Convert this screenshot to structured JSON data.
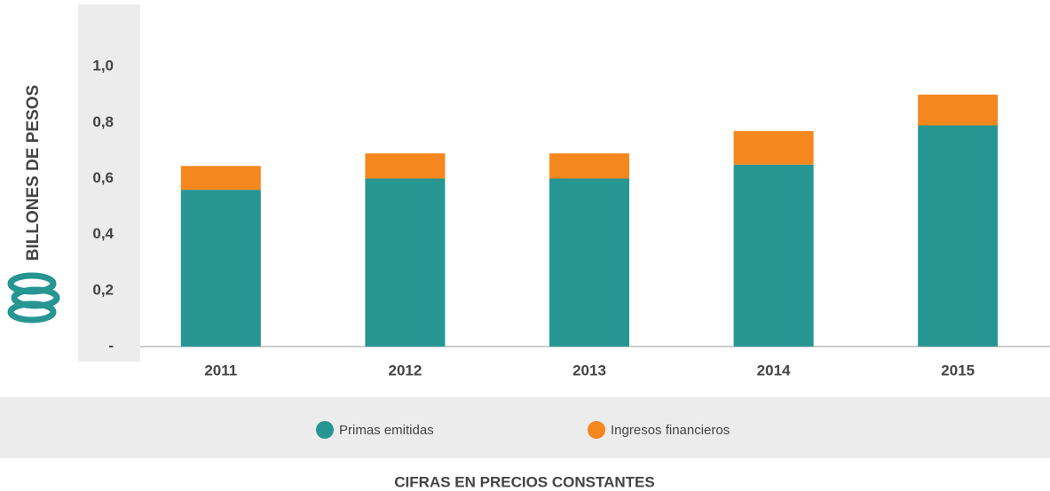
{
  "chart_data": {
    "type": "stacked_bar",
    "y_axis_label": "BILLONES DE PESOS",
    "footer": "CIFRAS EN PRECIOS CONSTANTES",
    "categories": [
      "2011",
      "2012",
      "2013",
      "2014",
      "2015"
    ],
    "series": [
      {
        "name": "Primas emitidas",
        "color": "#279693",
        "values": [
          0.56,
          0.6,
          0.6,
          0.65,
          0.79
        ]
      },
      {
        "name": "Ingresos financieros",
        "color": "#f5871f",
        "values": [
          0.085,
          0.09,
          0.09,
          0.12,
          0.11
        ]
      }
    ],
    "ylim": [
      0,
      1.2
    ],
    "yticks": [
      {
        "value": 0,
        "label": "-"
      },
      {
        "value": 0.2,
        "label": "0,2"
      },
      {
        "value": 0.4,
        "label": "0,4"
      },
      {
        "value": 0.6,
        "label": "0,6"
      },
      {
        "value": 0.8,
        "label": "0,8"
      },
      {
        "value": 1.0,
        "label": "1,0"
      }
    ]
  }
}
